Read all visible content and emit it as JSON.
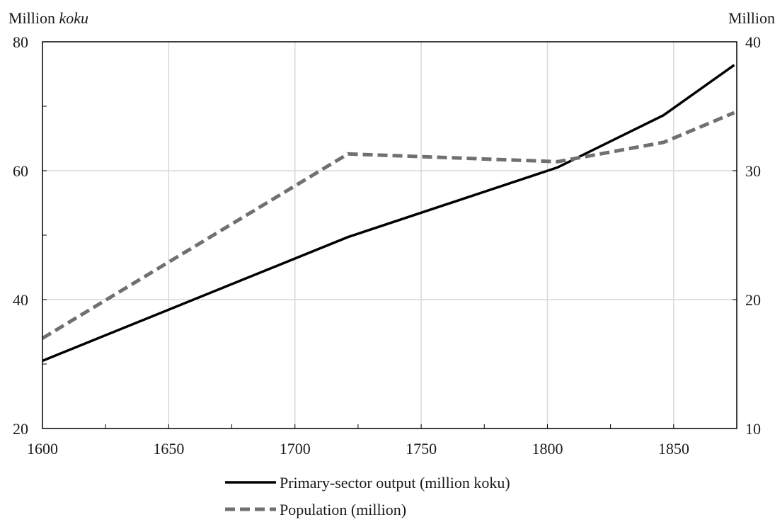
{
  "chart_data": {
    "type": "line",
    "left_axis": {
      "title_prefix": "Million ",
      "title_unit": "koku",
      "ylim": [
        20,
        80
      ],
      "ticks": [
        20,
        40,
        60,
        80
      ],
      "minor_ticks": [
        30,
        50,
        70
      ]
    },
    "right_axis": {
      "title": "Million",
      "ylim": [
        10,
        40
      ],
      "ticks": [
        10,
        20,
        30,
        40
      ]
    },
    "x_axis": {
      "xlim": [
        1600,
        1875
      ],
      "ticks": [
        1600,
        1650,
        1700,
        1750,
        1800,
        1850
      ],
      "minor_ticks": [
        1625,
        1675,
        1725,
        1775,
        1825
      ],
      "tick_labels": [
        "1600",
        "1650",
        "1700",
        "1750",
        "1800",
        "1850"
      ]
    },
    "grid": {
      "vertical": true,
      "horizontal": true,
      "color": "#d9d9d9"
    },
    "series": [
      {
        "name": "Primary-sector output (million koku)",
        "axis": "left",
        "color": "#000000",
        "style": "solid",
        "x": [
          1600,
          1721,
          1804,
          1846,
          1874
        ],
        "y": [
          30.5,
          49.7,
          60.5,
          68.6,
          76.4
        ]
      },
      {
        "name": "Population (million)",
        "axis": "right",
        "color": "#707070",
        "style": "dashed",
        "x": [
          1600,
          1721,
          1804,
          1846,
          1874
        ],
        "y": [
          17.0,
          31.3,
          30.7,
          32.2,
          34.5
        ]
      }
    ],
    "legend_placement": "bottom-center"
  }
}
